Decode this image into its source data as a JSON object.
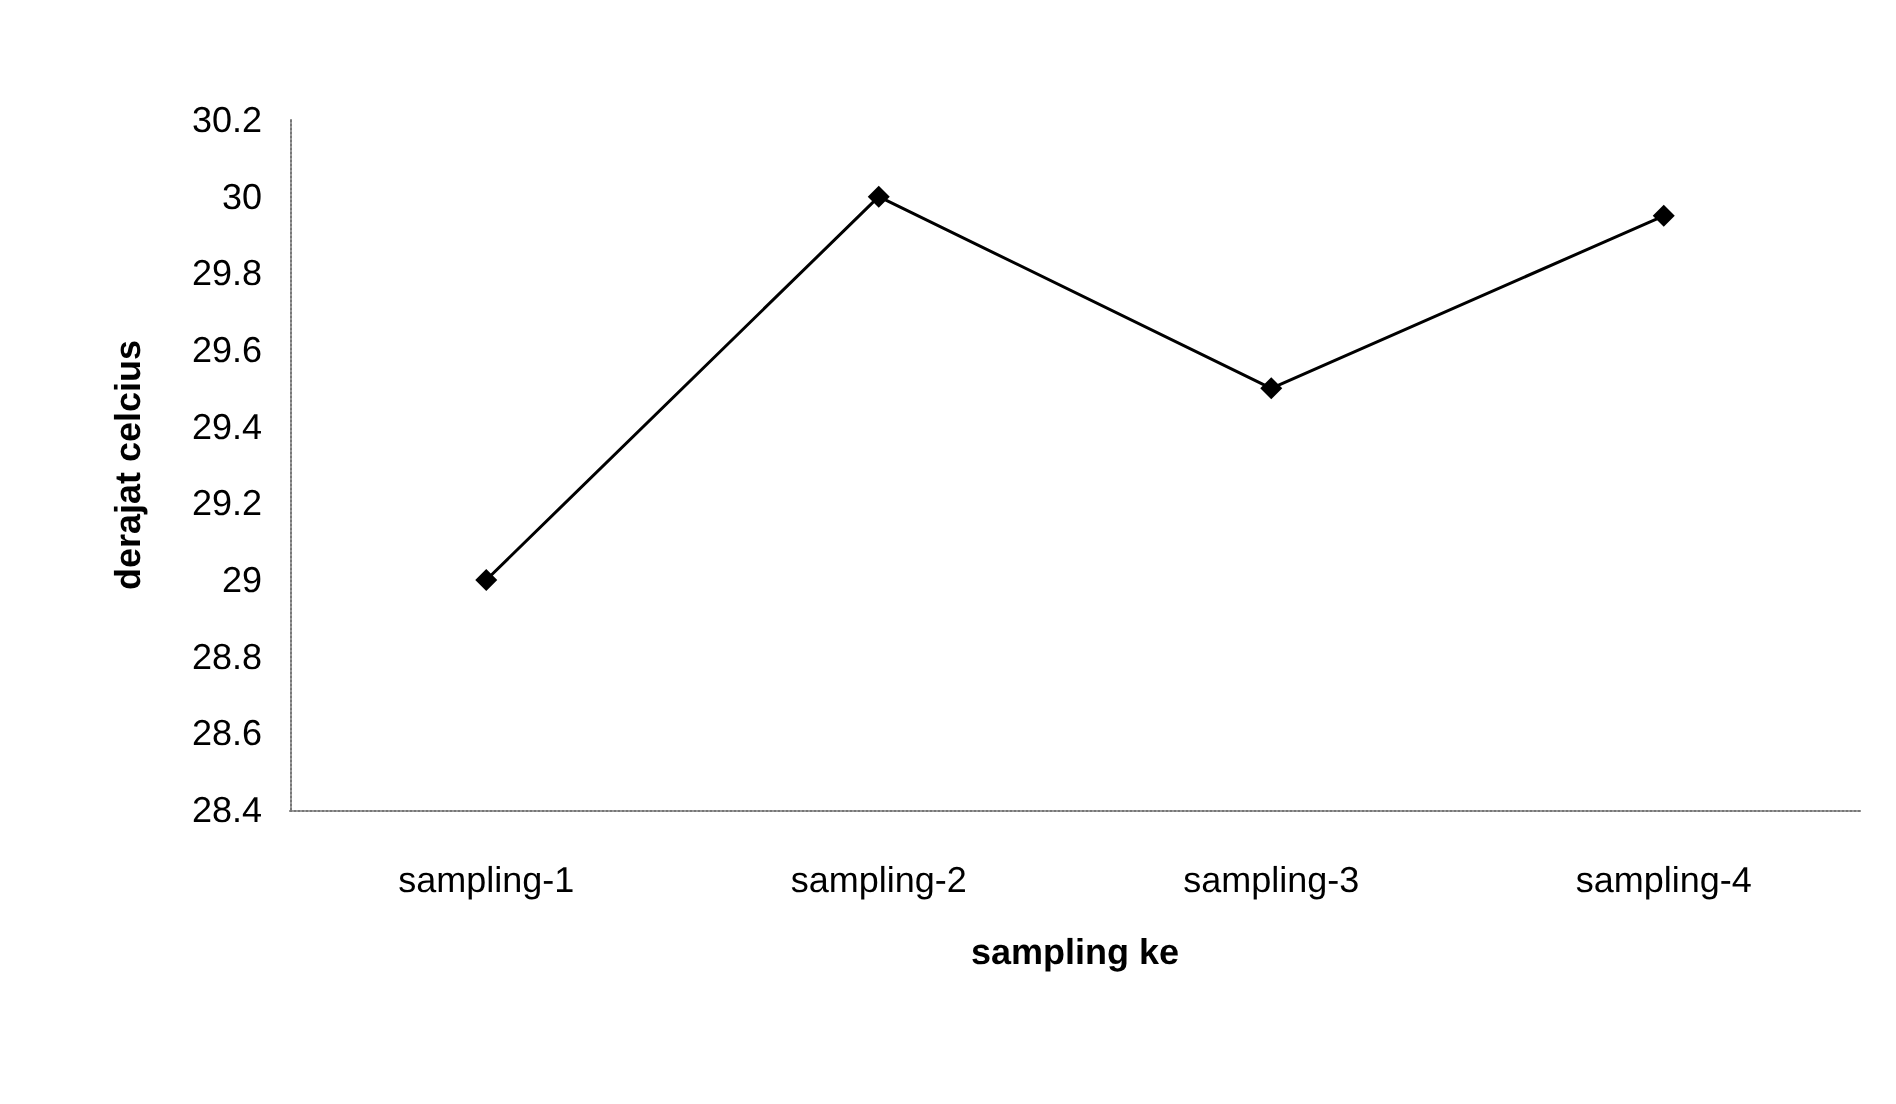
{
  "chart_data": {
    "type": "line",
    "xlabel": "sampling ke",
    "ylabel": "derajat celcius",
    "categories": [
      "sampling-1",
      "sampling-2",
      "sampling-3",
      "sampling-4"
    ],
    "series": [
      {
        "color": "#000000",
        "values": [
          29,
          30,
          29.5,
          29.95
        ]
      }
    ],
    "ylim": [
      28.4,
      30.2
    ],
    "yticks": [
      28.4,
      28.6,
      28.8,
      29,
      29.2,
      29.4,
      29.6,
      29.8,
      30,
      30.2
    ],
    "grid": false,
    "marker": "diamond",
    "line_style": "solid"
  }
}
